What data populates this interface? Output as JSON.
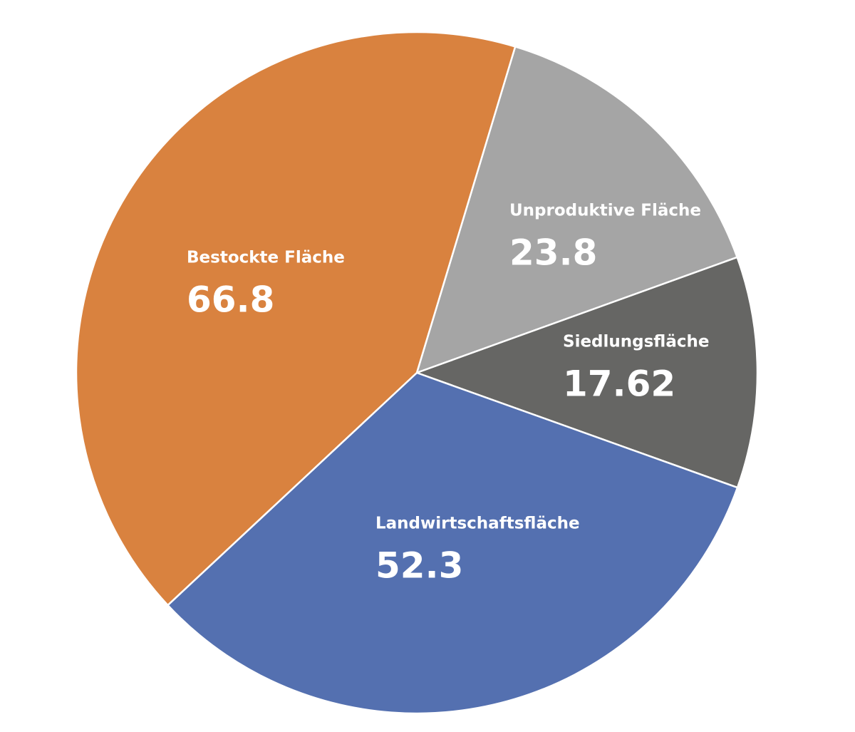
{
  "chart_data": {
    "type": "pie",
    "categories": [
      "Unproduktive Fläche",
      "Siedlungsfläche",
      "Landwirtschaftsfläche",
      "Bestockte Fläche"
    ],
    "values": [
      23.8,
      17.62,
      52.3,
      66.8
    ],
    "colors": [
      "#a5a5a5",
      "#666664",
      "#5470b0",
      "#d9823f"
    ]
  }
}
